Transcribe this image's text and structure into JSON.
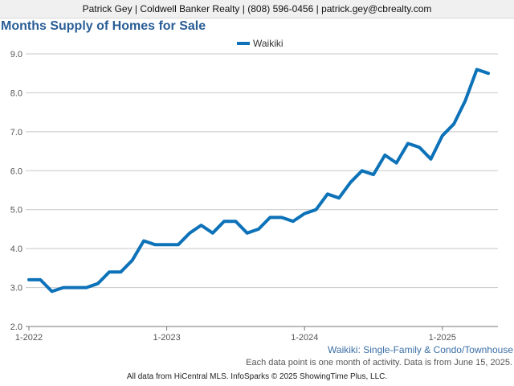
{
  "header": {
    "contact_line": "Patrick Gey | Coldwell Banker Realty | (808) 596-0456 | patrick.gey@cbrealty.com"
  },
  "chart_title": "Months Supply of Homes for Sale",
  "subtitle": "Waikiki: Single-Family & Condo/Townhouse",
  "footnote": "Each data point is one month of activity. Data is from June 15, 2025.",
  "source": "All data from HiCentral MLS. InfoSparks © 2025 ShowingTime Plus, LLC.",
  "colors": {
    "series": "#0d72b8",
    "grid": "#c8c8c8",
    "title": "#2a5f96"
  },
  "chart_data": {
    "type": "line",
    "title": "Months Supply of Homes for Sale",
    "xlabel": "",
    "ylabel": "",
    "ylim": [
      2.0,
      9.0
    ],
    "yticks": [
      2.0,
      3.0,
      4.0,
      5.0,
      6.0,
      7.0,
      8.0,
      9.0
    ],
    "ytick_labels": [
      "2.0",
      "3.0",
      "4.0",
      "5.0",
      "6.0",
      "7.0",
      "8.0",
      "9.0"
    ],
    "xtick_labels": [
      "1-2022",
      "1-2023",
      "1-2024",
      "1-2025"
    ],
    "grid": true,
    "legend_position": "top-center",
    "series": [
      {
        "name": "Waikiki",
        "x": [
          "1-2022",
          "2-2022",
          "3-2022",
          "4-2022",
          "5-2022",
          "6-2022",
          "7-2022",
          "8-2022",
          "9-2022",
          "10-2022",
          "11-2022",
          "12-2022",
          "1-2023",
          "2-2023",
          "3-2023",
          "4-2023",
          "5-2023",
          "6-2023",
          "7-2023",
          "8-2023",
          "9-2023",
          "10-2023",
          "11-2023",
          "12-2023",
          "1-2024",
          "2-2024",
          "3-2024",
          "4-2024",
          "5-2024",
          "6-2024",
          "7-2024",
          "8-2024",
          "9-2024",
          "10-2024",
          "11-2024",
          "12-2024",
          "1-2025",
          "2-2025",
          "3-2025",
          "4-2025",
          "5-2025"
        ],
        "values": [
          3.2,
          3.2,
          2.9,
          3.0,
          3.0,
          3.0,
          3.1,
          3.4,
          3.4,
          3.7,
          4.2,
          4.1,
          4.1,
          4.1,
          4.4,
          4.6,
          4.4,
          4.7,
          4.7,
          4.4,
          4.5,
          4.8,
          4.8,
          4.7,
          4.9,
          5.0,
          5.4,
          5.3,
          5.7,
          6.0,
          5.9,
          6.4,
          6.2,
          6.7,
          6.6,
          6.3,
          6.9,
          7.2,
          7.8,
          8.6,
          8.5
        ]
      }
    ]
  }
}
